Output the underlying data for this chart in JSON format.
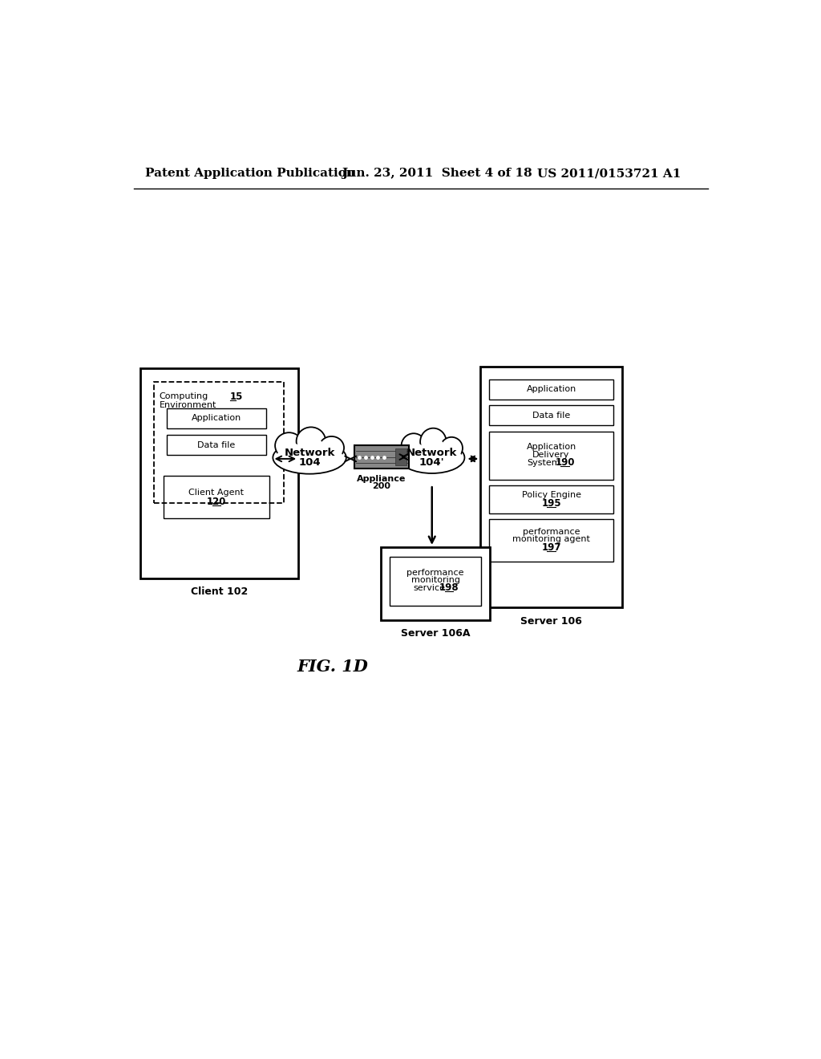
{
  "header_left": "Patent Application Publication",
  "header_mid": "Jun. 23, 2011  Sheet 4 of 18",
  "header_right": "US 2011/0153721 A1",
  "fig_label": "FIG. 1D",
  "background_color": "#ffffff",
  "text_color": "#000000"
}
